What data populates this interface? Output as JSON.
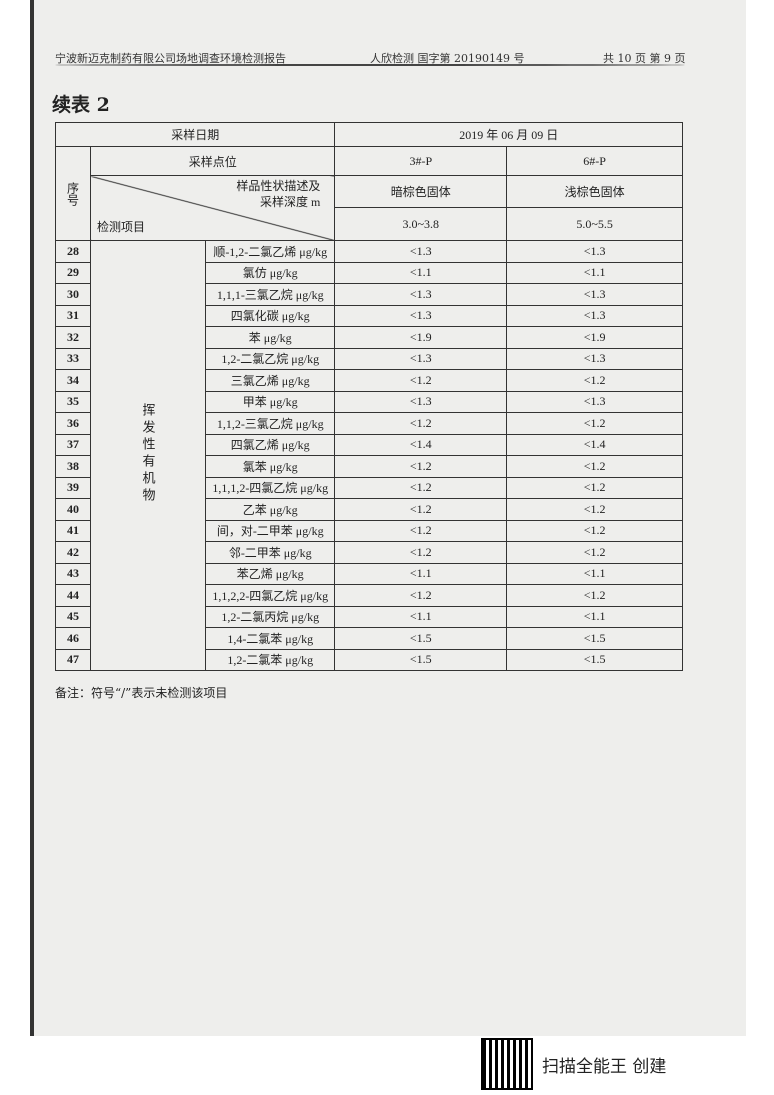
{
  "header": {
    "company": "宁波新迈克制药有限公司场地调查环境检测报告",
    "report_no": "人欣检测 国字第 20190149 号",
    "page": "共 10 页 第 9 页"
  },
  "title": "续表 2",
  "table": {
    "date_label": "采样日期",
    "date": "2019 年 06 月 09 日",
    "seq_label": "序号",
    "point_label": "采样点位",
    "desc_label": "样品性状描述及",
    "depth_label": "采样深度 m",
    "item_label": "检测项目",
    "points": [
      "3#-P",
      "6#-P"
    ],
    "descriptions": [
      "暗棕色固体",
      "浅棕色固体"
    ],
    "depths": [
      "3.0~3.8",
      "5.0~5.5"
    ],
    "category": "挥发性有机物",
    "rows": [
      {
        "no": "28",
        "item": "顺-1,2-二氯乙烯 μg/kg",
        "v1": "<1.3",
        "v2": "<1.3"
      },
      {
        "no": "29",
        "item": "氯仿 μg/kg",
        "v1": "<1.1",
        "v2": "<1.1"
      },
      {
        "no": "30",
        "item": "1,1,1-三氯乙烷 μg/kg",
        "v1": "<1.3",
        "v2": "<1.3"
      },
      {
        "no": "31",
        "item": "四氯化碳 μg/kg",
        "v1": "<1.3",
        "v2": "<1.3"
      },
      {
        "no": "32",
        "item": "苯 μg/kg",
        "v1": "<1.9",
        "v2": "<1.9"
      },
      {
        "no": "33",
        "item": "1,2-二氯乙烷 μg/kg",
        "v1": "<1.3",
        "v2": "<1.3"
      },
      {
        "no": "34",
        "item": "三氯乙烯 μg/kg",
        "v1": "<1.2",
        "v2": "<1.2"
      },
      {
        "no": "35",
        "item": "甲苯 μg/kg",
        "v1": "<1.3",
        "v2": "<1.3"
      },
      {
        "no": "36",
        "item": "1,1,2-三氯乙烷 μg/kg",
        "v1": "<1.2",
        "v2": "<1.2"
      },
      {
        "no": "37",
        "item": "四氯乙烯 μg/kg",
        "v1": "<1.4",
        "v2": "<1.4"
      },
      {
        "no": "38",
        "item": "氯苯 μg/kg",
        "v1": "<1.2",
        "v2": "<1.2"
      },
      {
        "no": "39",
        "item": "1,1,1,2-四氯乙烷 μg/kg",
        "v1": "<1.2",
        "v2": "<1.2"
      },
      {
        "no": "40",
        "item": "乙苯 μg/kg",
        "v1": "<1.2",
        "v2": "<1.2"
      },
      {
        "no": "41",
        "item": "间，对-二甲苯 μg/kg",
        "v1": "<1.2",
        "v2": "<1.2"
      },
      {
        "no": "42",
        "item": "邻-二甲苯 μg/kg",
        "v1": "<1.2",
        "v2": "<1.2"
      },
      {
        "no": "43",
        "item": "苯乙烯 μg/kg",
        "v1": "<1.1",
        "v2": "<1.1"
      },
      {
        "no": "44",
        "item": "1,1,2,2-四氯乙烷 μg/kg",
        "v1": "<1.2",
        "v2": "<1.2"
      },
      {
        "no": "45",
        "item": "1,2-二氯丙烷 μg/kg",
        "v1": "<1.1",
        "v2": "<1.1"
      },
      {
        "no": "46",
        "item": "1,4-二氯苯 μg/kg",
        "v1": "<1.5",
        "v2": "<1.5"
      },
      {
        "no": "47",
        "item": "1,2-二氯苯 μg/kg",
        "v1": "<1.5",
        "v2": "<1.5"
      }
    ]
  },
  "note": "备注：符号“/”表示未检测该项目",
  "watermark": "扫描全能王 创建"
}
